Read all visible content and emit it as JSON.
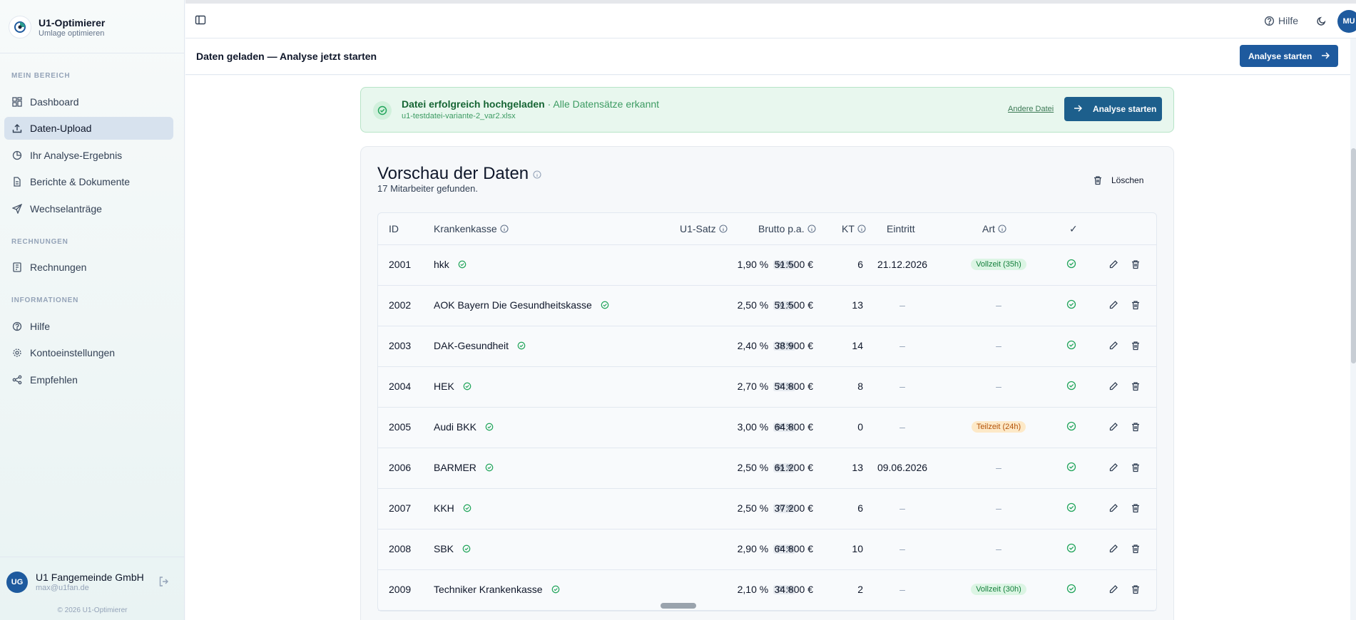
{
  "brand": {
    "title": "U1-Optimierer",
    "subtitle": "Umlage optimieren"
  },
  "sidebar": {
    "sections": [
      {
        "label": "MEIN BEREICH"
      },
      {
        "label": "RECHNUNGEN"
      },
      {
        "label": "INFORMATIONEN"
      }
    ],
    "items": [
      {
        "label": "Dashboard",
        "icon": "grid-icon"
      },
      {
        "label": "Daten-Upload",
        "icon": "upload-icon",
        "active": true
      },
      {
        "label": "Ihr Analyse-Ergebnis",
        "icon": "pie-chart-icon"
      },
      {
        "label": "Berichte & Dokumente",
        "icon": "document-icon"
      },
      {
        "label": "Wechselanträge",
        "icon": "send-icon"
      },
      {
        "label": "Rechnungen",
        "icon": "receipt-icon"
      },
      {
        "label": "Hilfe",
        "icon": "help-circle-icon"
      },
      {
        "label": "Kontoeinstellungen",
        "icon": "gear-icon"
      },
      {
        "label": "Empfehlen",
        "icon": "share-icon"
      }
    ]
  },
  "user": {
    "initials": "UG",
    "name": "U1 Fangemeinde GmbH",
    "email": "max@u1fan.de",
    "copyright": "© 2026 U1-Optimierer"
  },
  "topbar": {
    "help_label": "Hilfe",
    "avatar_initials": "MU"
  },
  "subheader": {
    "title": "Daten geladen — Analyse jetzt starten",
    "button_label": "Analyse starten"
  },
  "upload_card": {
    "title": "Datei erfolgreich hochgeladen",
    "status": "· Alle Datensätze erkannt",
    "filename": "u1-testdatei-variante-2_var2.xlsx",
    "other_file_label": "Andere Datei",
    "button_label": "Analyse starten"
  },
  "preview": {
    "title": "Vorschau der Daten",
    "subtitle": "17 Mitarbeiter gefunden.",
    "delete_label": "Löschen",
    "columns": {
      "id": "ID",
      "krankenkasse": "Krankenkasse",
      "satz": "U1-Satz",
      "brutto": "Brutto p.a.",
      "kt": "KT",
      "eintritt": "Eintritt",
      "art": "Art",
      "check": "✓"
    },
    "rows": [
      {
        "id": "2001",
        "kasse": "hkk",
        "satz": "1,90 %",
        "pct": "60 %",
        "brutto": "51.500 €",
        "kt": "6",
        "eintritt": "21.12.2026",
        "art": "Vollzeit (35h)",
        "art_color": "green"
      },
      {
        "id": "2002",
        "kasse": "AOK Bayern Die Gesundheitskasse",
        "satz": "2,50 %",
        "pct": "70 %",
        "brutto": "51.500 €",
        "kt": "13",
        "eintritt": "–",
        "art": "–",
        "art_color": "none"
      },
      {
        "id": "2003",
        "kasse": "DAK-Gesundheit",
        "satz": "2,40 %",
        "pct": "70 %",
        "brutto": "38.900 €",
        "kt": "14",
        "eintritt": "–",
        "art": "–",
        "art_color": "none"
      },
      {
        "id": "2004",
        "kasse": "HEK",
        "satz": "2,70 %",
        "pct": "70 %",
        "brutto": "54.800 €",
        "kt": "8",
        "eintritt": "–",
        "art": "–",
        "art_color": "none"
      },
      {
        "id": "2005",
        "kasse": "Audi BKK",
        "satz": "3,00 %",
        "pct": "80 %",
        "brutto": "64.800 €",
        "kt": "0",
        "eintritt": "–",
        "art": "Teilzeit (24h)",
        "art_color": "amber"
      },
      {
        "id": "2006",
        "kasse": "BARMER",
        "satz": "2,50 %",
        "pct": "65 %",
        "brutto": "61.200 €",
        "kt": "13",
        "eintritt": "09.06.2026",
        "art": "–",
        "art_color": "none"
      },
      {
        "id": "2007",
        "kasse": "KKH",
        "satz": "2,50 %",
        "pct": "70 %",
        "brutto": "37.200 €",
        "kt": "6",
        "eintritt": "–",
        "art": "–",
        "art_color": "none"
      },
      {
        "id": "2008",
        "kasse": "SBK",
        "satz": "2,90 %",
        "pct": "70 %",
        "brutto": "64.800 €",
        "kt": "10",
        "eintritt": "–",
        "art": "–",
        "art_color": "none"
      },
      {
        "id": "2009",
        "kasse": "Techniker Krankenkasse",
        "satz": "2,10 %",
        "pct": "70 %",
        "brutto": "34.800 €",
        "kt": "2",
        "eintritt": "–",
        "art": "Vollzeit (30h)",
        "art_color": "green"
      }
    ]
  },
  "colors": {
    "primary": "#1e5a9e",
    "success": "#22a55b",
    "active_nav": "#d7e2ee"
  }
}
